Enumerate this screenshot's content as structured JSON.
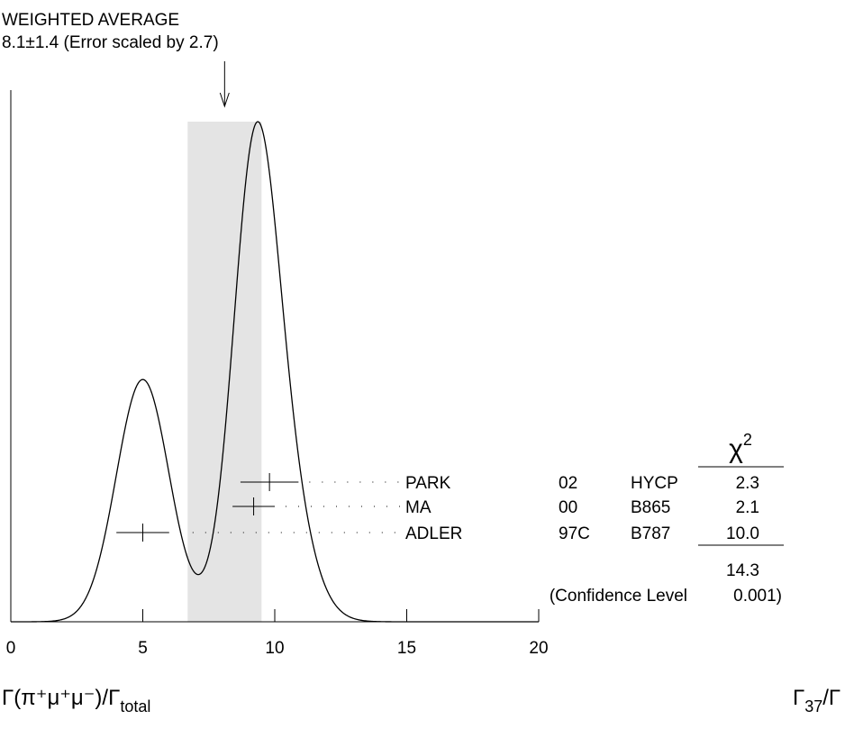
{
  "chart_data": {
    "type": "ideogram",
    "title": "WEIGHTED AVERAGE",
    "subtitle": "8.1±1.4 (Error scaled by 2.7)",
    "average": 8.1,
    "average_error": 1.4,
    "xlim": [
      0,
      20
    ],
    "xticks": [
      0,
      5,
      10,
      15,
      20
    ],
    "names": [
      "PARK",
      "MA",
      "ADLER"
    ],
    "years": [
      "02",
      "00",
      "97C"
    ],
    "experiments": [
      "HYCP",
      "B865",
      "B787"
    ],
    "values": [
      9.8,
      9.2,
      5.0
    ],
    "errors": [
      1.1,
      0.8,
      1.0
    ],
    "chi2": [
      2.3,
      2.1,
      10.0
    ],
    "chi2_labels": [
      "2.3",
      "2.1",
      "10.0"
    ],
    "chi2_symbol": "χ",
    "chi2_power": "2",
    "chi2_total": 14.3,
    "confidence_text": "(Confidence Level",
    "confidence_level": 0.001,
    "confidence_level_label": "0.001)",
    "x_label": "Γ(π⁺μ⁺μ⁻)/Γ",
    "x_label_sub": "total",
    "ratio_label": "Γ",
    "ratio_sub": "37",
    "ratio_tail": "/Γ",
    "band_color": "#e4e4e4",
    "line_color": "#000000"
  }
}
